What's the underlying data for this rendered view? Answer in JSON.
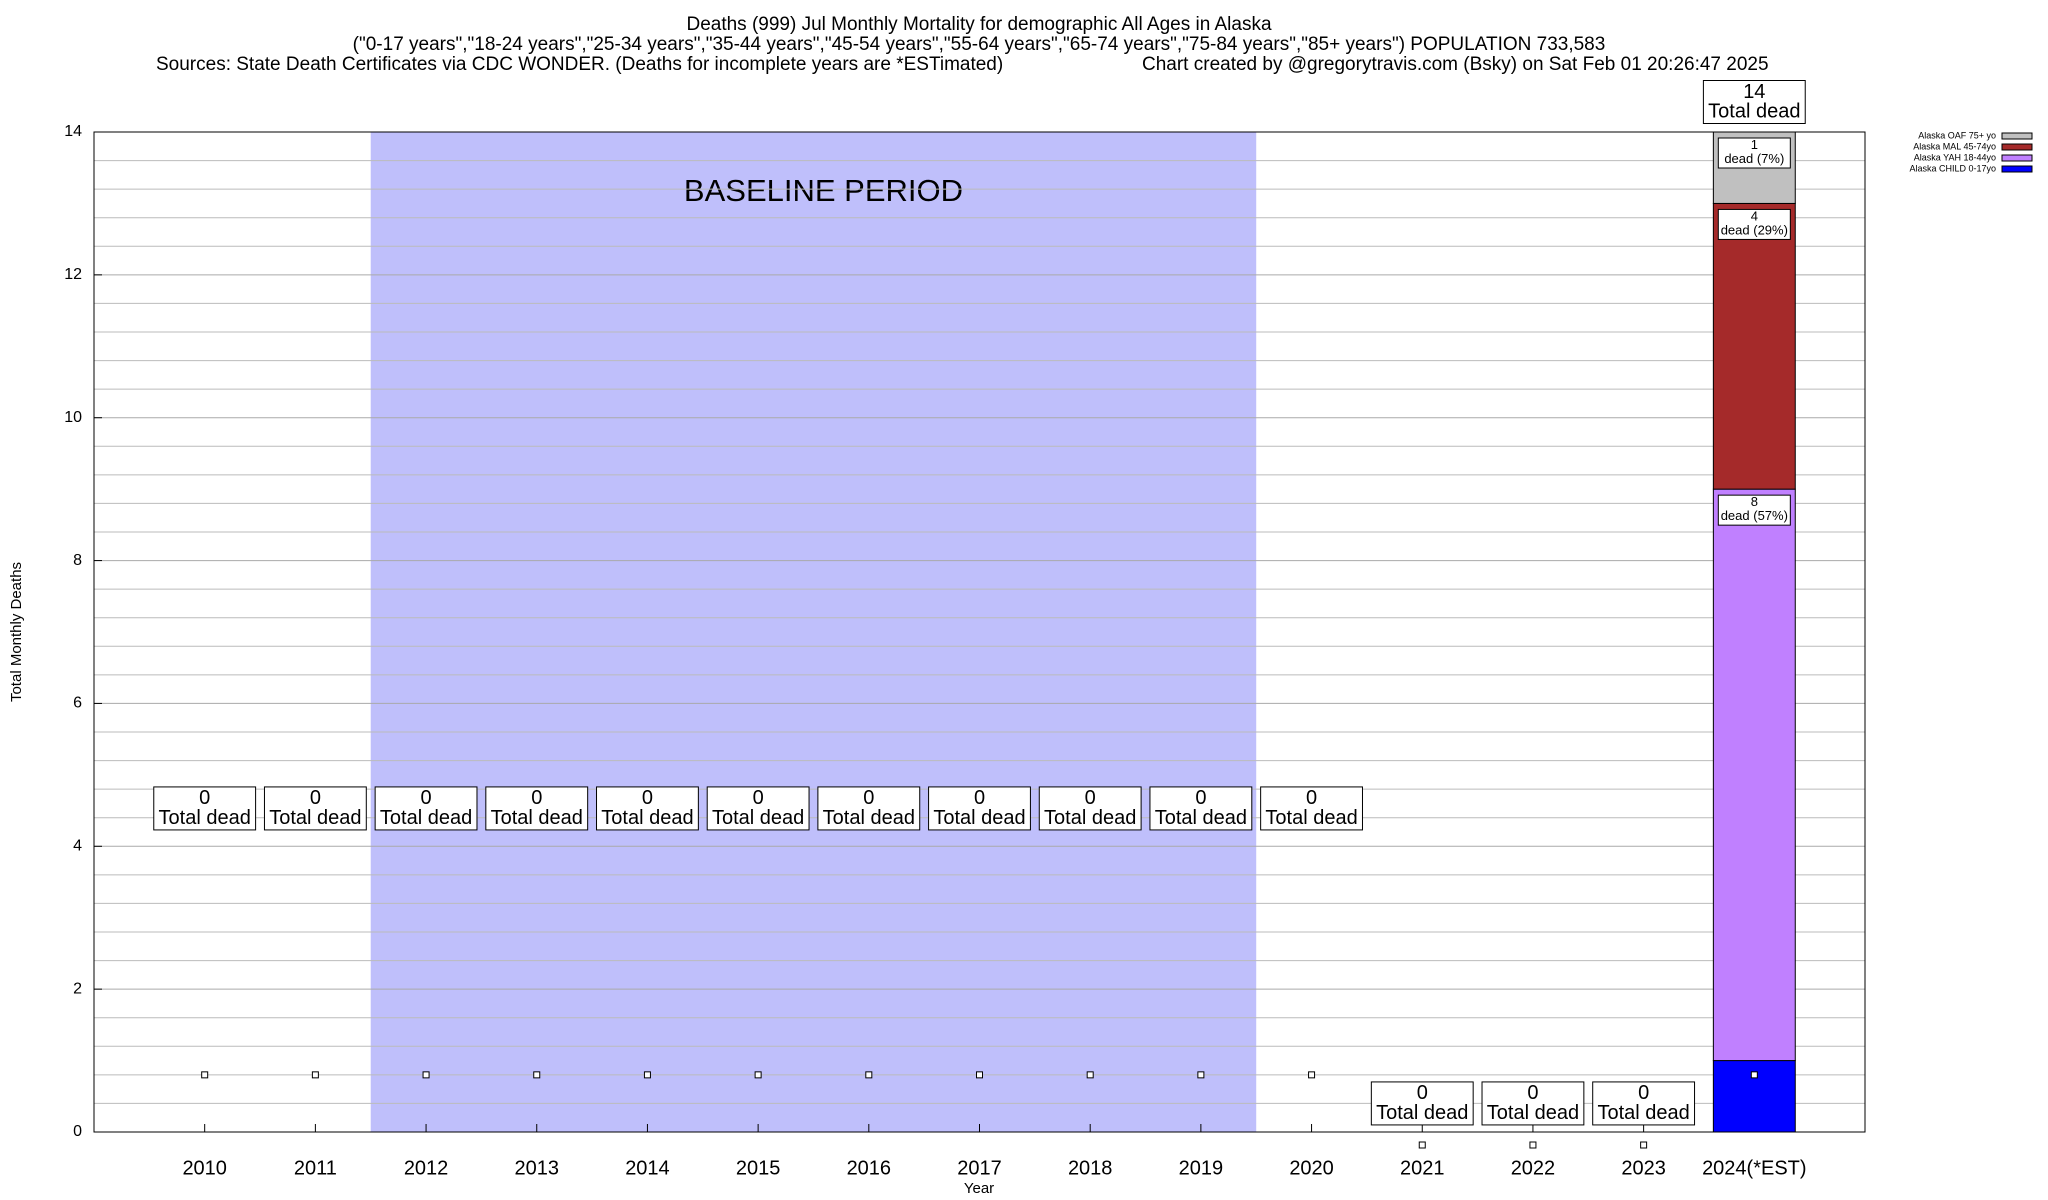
{
  "chart_data": {
    "type": "stacked_bar",
    "title": "Deaths (999) Jul Monthly Mortality for demographic All Ages in Alaska",
    "subtitle": "(\"0-17 years\",\"18-24 years\",\"25-34 years\",\"35-44 years\",\"45-54 years\",\"55-64 years\",\"65-74 years\",\"75-84 years\",\"85+ years\") POPULATION 733,583",
    "source": "Sources: State Death Certificates via CDC WONDER. (Deaths for incomplete years are *ESTimated)",
    "credit": "Chart created by @gregorytravis.com (Bsky) on Sat Feb 01 20:26:47 2025",
    "x_label": "Year",
    "y_label": "Total Monthly Deaths",
    "categories": [
      "2010",
      "2011",
      "2012",
      "2013",
      "2014",
      "2015",
      "2016",
      "2017",
      "2018",
      "2019",
      "2020",
      "2021",
      "2022",
      "2023",
      "2024(*EST)"
    ],
    "series": [
      {
        "name": "Alaska CHILD 0-17yo",
        "color": "#0000ff",
        "values": [
          0,
          0,
          0,
          0,
          0,
          0,
          0,
          0,
          0,
          0,
          0,
          0,
          0,
          0,
          1
        ],
        "value_labels": [
          null,
          null,
          null,
          null,
          null,
          null,
          null,
          null,
          null,
          null,
          null,
          null,
          null,
          null,
          null
        ]
      },
      {
        "name": "Alaska YAH 18-44yo",
        "color": "#c080ff",
        "values": [
          0,
          0,
          0,
          0,
          0,
          0,
          0,
          0,
          0,
          0,
          0,
          0,
          0,
          0,
          8
        ],
        "value_labels": [
          null,
          null,
          null,
          null,
          null,
          null,
          null,
          null,
          null,
          null,
          null,
          null,
          null,
          null,
          "8\ndead (57%)"
        ]
      },
      {
        "name": "Alaska MAL 45-74yo",
        "color": "#a52a2a",
        "values": [
          0,
          0,
          0,
          0,
          0,
          0,
          0,
          0,
          0,
          0,
          0,
          0,
          0,
          0,
          4
        ],
        "value_labels": [
          null,
          null,
          null,
          null,
          null,
          null,
          null,
          null,
          null,
          null,
          null,
          null,
          null,
          null,
          "4\ndead (29%)"
        ]
      },
      {
        "name": "Alaska OAF 75+ yo",
        "color": "#c0c0c0",
        "values": [
          0,
          0,
          0,
          0,
          0,
          0,
          0,
          0,
          0,
          0,
          0,
          0,
          0,
          0,
          1
        ],
        "value_labels": [
          null,
          null,
          null,
          null,
          null,
          null,
          null,
          null,
          null,
          null,
          null,
          null,
          null,
          null,
          "1\ndead (7%)"
        ]
      }
    ],
    "totals": [
      0,
      0,
      0,
      0,
      0,
      0,
      0,
      0,
      0,
      0,
      0,
      0,
      0,
      0,
      14
    ],
    "total_caption": "Total dead",
    "baseline": {
      "label": "BASELINE PERIOD",
      "color": "#bfbffb",
      "categories": [
        "2012",
        "2019"
      ]
    },
    "ylim": [
      0,
      14
    ],
    "yticks": [
      0,
      2,
      4,
      6,
      8,
      10,
      12,
      14
    ],
    "grid": true,
    "legend": "top-right"
  }
}
